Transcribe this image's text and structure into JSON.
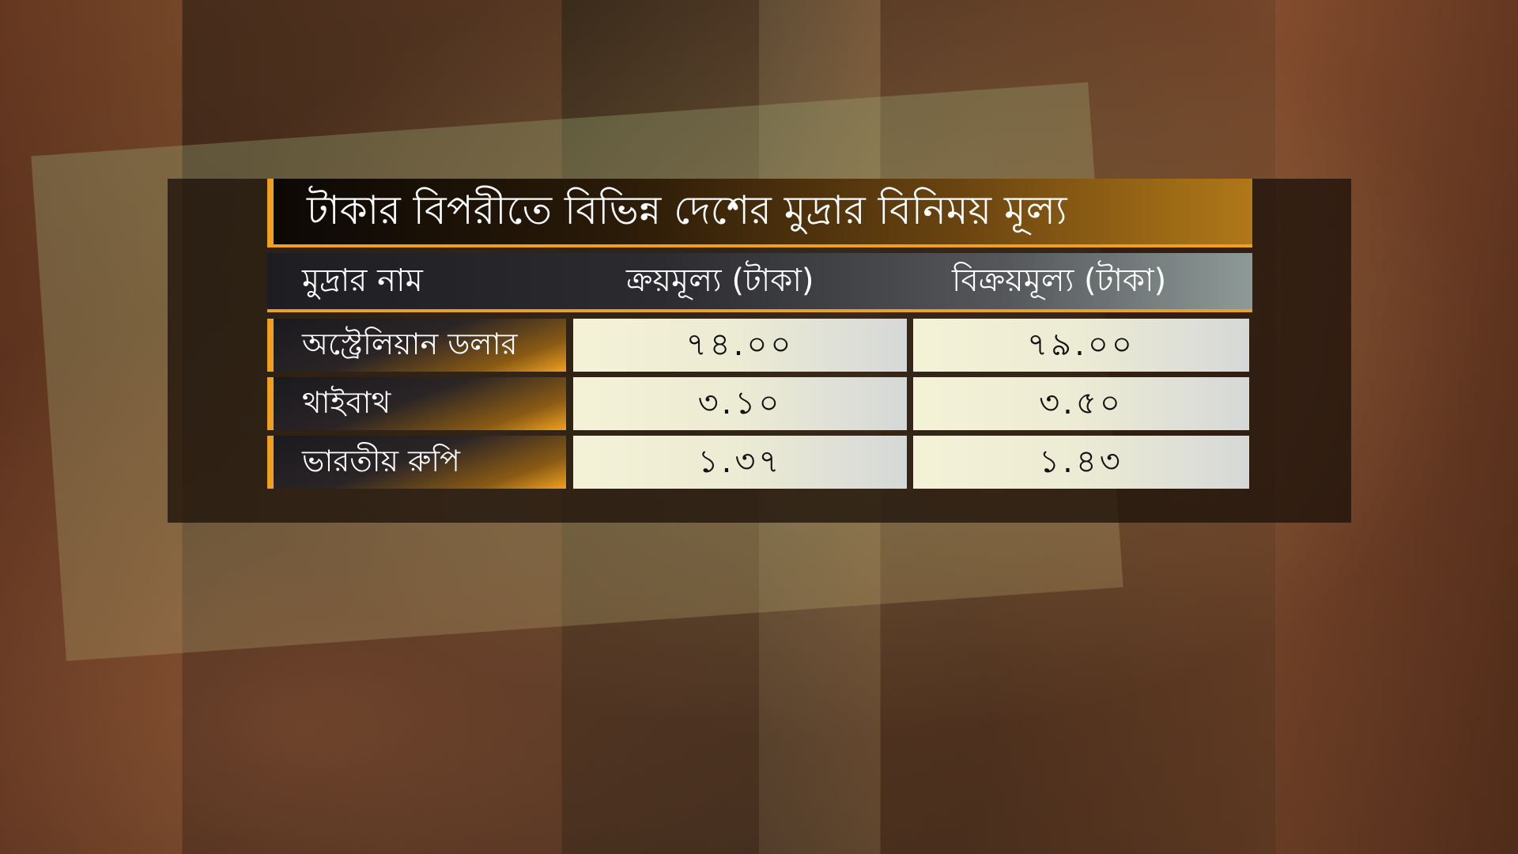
{
  "title": "টাকার বিপরীতে বিভিন্ন দেশের মুদ্রার বিনিময় মূল্য",
  "header": {
    "name": "মুদ্রার নাম",
    "buy": "ক্রয়মূল্য (টাকা)",
    "sell": "বিক্রয়মূল্য (টাকা)"
  },
  "rows": [
    {
      "name": "অস্ট্রেলিয়ান ডলার",
      "buy": "৭৪.০০",
      "sell": "৭৯.০০"
    },
    {
      "name": "থাইবাথ",
      "buy": "৩.১০",
      "sell": "৩.৫০"
    },
    {
      "name": "ভারতীয় রুপি",
      "buy": "১.৩৭",
      "sell": "১.৪৩"
    }
  ],
  "colors": {
    "accent": "#f0a020"
  }
}
